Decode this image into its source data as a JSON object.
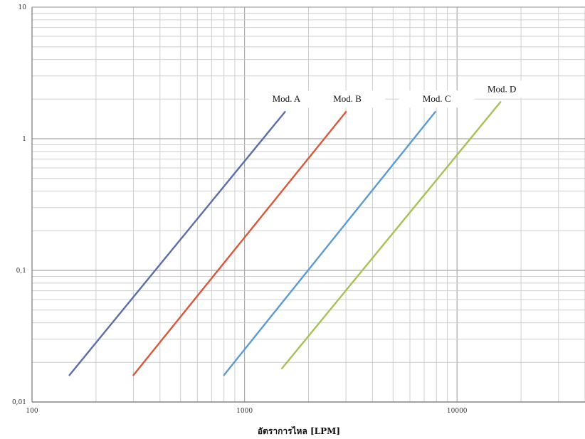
{
  "chart_data": {
    "type": "line",
    "title": "",
    "xlabel": "อัตราการไหล [LPM]",
    "ylabel": "",
    "xscale": "log",
    "yscale": "log",
    "xlim": [
      100,
      40000
    ],
    "ylim": [
      0.01,
      10
    ],
    "xticks": [
      {
        "value": 100,
        "label": "100"
      },
      {
        "value": 1000,
        "label": "1000"
      },
      {
        "value": 10000,
        "label": "10000"
      }
    ],
    "yticks": [
      {
        "value": 0.01,
        "label": "0,01"
      },
      {
        "value": 0.1,
        "label": "0,1"
      },
      {
        "value": 1,
        "label": "1"
      },
      {
        "value": 10,
        "label": "10"
      }
    ],
    "grid": true,
    "series": [
      {
        "name": "Mod. A",
        "color": "#5b6fa6",
        "x": [
          150,
          1550
        ],
        "y": [
          0.016,
          1.6
        ]
      },
      {
        "name": "Mod. B",
        "color": "#d9583c",
        "x": [
          300,
          3000
        ],
        "y": [
          0.016,
          1.6
        ]
      },
      {
        "name": "Mod. C",
        "color": "#5b9bd5",
        "x": [
          800,
          7900
        ],
        "y": [
          0.016,
          1.6
        ]
      },
      {
        "name": "Mod. D",
        "color": "#a6c157",
        "x": [
          1500,
          16000
        ],
        "y": [
          0.018,
          1.9
        ]
      }
    ]
  }
}
